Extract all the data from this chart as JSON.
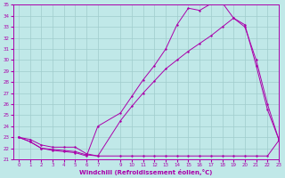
{
  "xlabel": "Windchill (Refroidissement éolien,°C)",
  "bg_color": "#c0e8e8",
  "grid_color": "#a0cccc",
  "line_color": "#aa00aa",
  "ylim": [
    21,
    35
  ],
  "xlim": [
    -0.5,
    23
  ],
  "yticks": [
    21,
    22,
    23,
    24,
    25,
    26,
    27,
    28,
    29,
    30,
    31,
    32,
    33,
    34,
    35
  ],
  "xticks": [
    0,
    1,
    2,
    3,
    4,
    5,
    6,
    7,
    9,
    10,
    11,
    12,
    13,
    14,
    15,
    16,
    17,
    18,
    19,
    20,
    21,
    22,
    23
  ],
  "line1_x": [
    0,
    1,
    2,
    3,
    4,
    5,
    6,
    7,
    9,
    10,
    11,
    12,
    13,
    14,
    15,
    16,
    17,
    18,
    19,
    20,
    21,
    22,
    23
  ],
  "line1_y": [
    23.0,
    22.8,
    22.3,
    22.1,
    22.1,
    22.1,
    21.5,
    21.3,
    21.3,
    21.3,
    21.3,
    21.3,
    21.3,
    21.3,
    21.3,
    21.3,
    21.3,
    21.3,
    21.3,
    21.3,
    21.3,
    21.3,
    22.7
  ],
  "line2_x": [
    0,
    1,
    2,
    3,
    4,
    5,
    6,
    7,
    9,
    10,
    11,
    12,
    13,
    14,
    15,
    16,
    17,
    18,
    19,
    20,
    21,
    22,
    23
  ],
  "line2_y": [
    23.0,
    22.6,
    22.0,
    21.8,
    21.7,
    21.6,
    21.3,
    24.0,
    25.2,
    26.7,
    28.2,
    29.5,
    31.0,
    33.2,
    34.7,
    34.5,
    35.1,
    35.2,
    33.8,
    33.0,
    30.0,
    26.0,
    22.8
  ],
  "line3_x": [
    0,
    1,
    2,
    3,
    4,
    5,
    6,
    7,
    9,
    10,
    11,
    12,
    13,
    14,
    15,
    16,
    17,
    18,
    19,
    20,
    21,
    22,
    23
  ],
  "line3_y": [
    23.0,
    22.6,
    22.0,
    21.9,
    21.8,
    21.7,
    21.4,
    21.3,
    24.5,
    25.8,
    27.0,
    28.1,
    29.2,
    30.0,
    30.8,
    31.5,
    32.2,
    33.0,
    33.8,
    33.2,
    29.5,
    25.5,
    22.8
  ]
}
